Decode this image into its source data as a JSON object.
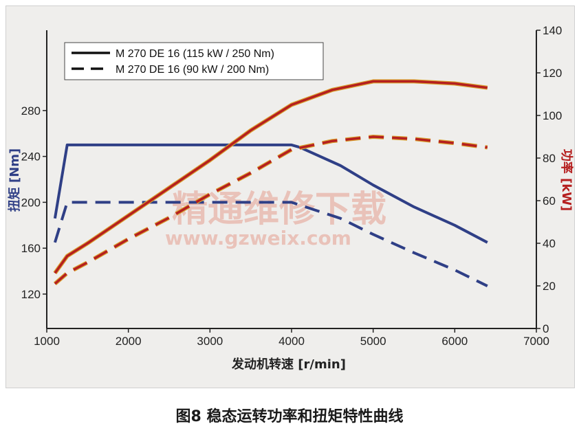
{
  "caption": "图8 稳态运转功率和扭矩特性曲线",
  "watermark": {
    "text": "精通维修下载",
    "url": "www.gzweix.com"
  },
  "colors": {
    "torque": "#2f3f86",
    "power": "#b51f1f",
    "power_edge": "#d9a030",
    "left_axis_label": "#2f3f86",
    "right_axis_label": "#b51f1f"
  },
  "chart_data": {
    "type": "line",
    "title": "",
    "xlabel": "发动机转速 [r/min]",
    "ylabel_left": "扭矩 [Nm]",
    "ylabel_right": "功率 [kW]",
    "xlim": [
      1000,
      7000
    ],
    "x_ticks": [
      1000,
      2000,
      3000,
      4000,
      5000,
      6000,
      7000
    ],
    "ylim_left": [
      90,
      350
    ],
    "y_ticks_left": [
      120,
      160,
      200,
      240,
      280
    ],
    "ylim_right": [
      0,
      140
    ],
    "y_ticks_right": [
      0,
      20,
      40,
      60,
      80,
      100,
      120,
      140
    ],
    "grid": false,
    "legend_position": "top-left",
    "legend": [
      {
        "label": "M 270 DE 16 (115 kW / 250 Nm)",
        "style": "solid"
      },
      {
        "label": "M 270 DE 16 (90 kW / 200 Nm)",
        "style": "dashed"
      }
    ],
    "series": [
      {
        "engine": "M 270 DE 16 (115 kW / 250 Nm)",
        "quantity": "torque",
        "axis": "left",
        "style": "solid",
        "x": [
          1100,
          1250,
          1500,
          2000,
          3000,
          4000,
          4100,
          4600,
          5000,
          5500,
          6000,
          6400
        ],
        "y": [
          186,
          250,
          250,
          250,
          250,
          250,
          248,
          232,
          215,
          196,
          180,
          165
        ]
      },
      {
        "engine": "M 270 DE 16 (90 kW / 200 Nm)",
        "quantity": "torque",
        "axis": "left",
        "style": "dashed",
        "x": [
          1100,
          1250,
          1500,
          2000,
          3000,
          4000,
          4600,
          5000,
          5500,
          6000,
          6400
        ],
        "y": [
          165,
          200,
          200,
          200,
          200,
          200,
          186,
          172,
          156,
          141,
          127
        ]
      },
      {
        "engine": "M 270 DE 16 (115 kW / 250 Nm)",
        "quantity": "power",
        "axis": "right",
        "style": "solid",
        "x": [
          1100,
          1250,
          1500,
          2000,
          2500,
          3000,
          3500,
          4000,
          4500,
          5000,
          5500,
          6000,
          6400
        ],
        "y": [
          26,
          34,
          40,
          53,
          66,
          79,
          93,
          105,
          112,
          116,
          116,
          115,
          113
        ]
      },
      {
        "engine": "M 270 DE 16 (90 kW / 200 Nm)",
        "quantity": "power",
        "axis": "right",
        "style": "dashed",
        "x": [
          1100,
          1250,
          1500,
          2000,
          2500,
          3000,
          3500,
          4000,
          4500,
          5000,
          5500,
          6000,
          6400
        ],
        "y": [
          21,
          26,
          31,
          42,
          52,
          63,
          73,
          84,
          88,
          90,
          89,
          87,
          85
        ]
      }
    ]
  }
}
